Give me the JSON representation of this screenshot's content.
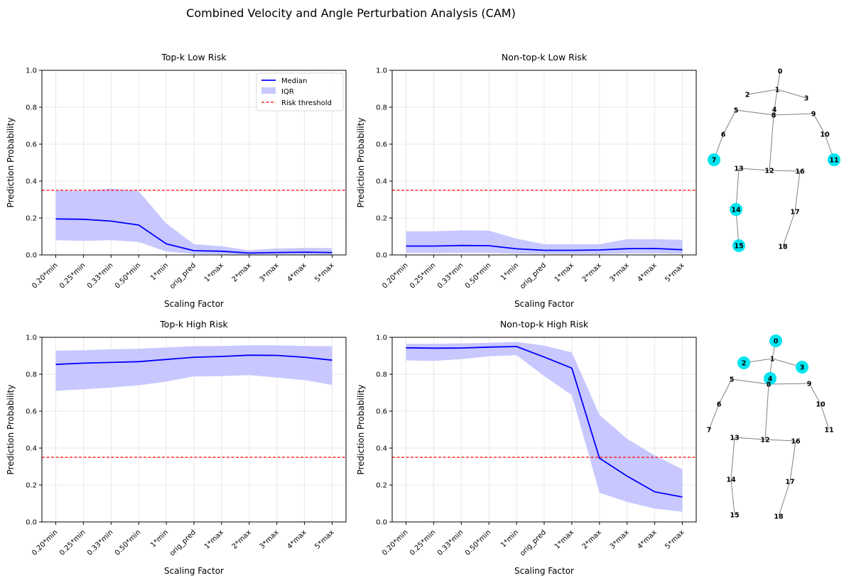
{
  "figure_title": "Combined Velocity and Angle Perturbation Analysis (CAM)",
  "colors": {
    "median": "#0000ff",
    "iqr": "#c8c8ff",
    "threshold": "#ff0000",
    "grid": "#e3e3e3",
    "joint_highlight": "#00e5f0",
    "bone": "#808080"
  },
  "legend": {
    "median": "Median",
    "iqr": "IQR",
    "threshold": "Risk threshold"
  },
  "chart_data": [
    {
      "type": "line",
      "title": "Top-k Low Risk",
      "xlabel": "Scaling Factor",
      "ylabel": "Prediction Probability",
      "ylim": [
        0,
        1
      ],
      "yticks": [
        "0.0",
        "0.2",
        "0.4",
        "0.6",
        "0.8",
        "1.0"
      ],
      "categories": [
        "0.20*min",
        "0.25*min",
        "0.33*min",
        "0.50*min",
        "1*min",
        "orig_pred",
        "1*max",
        "2*max",
        "3*max",
        "4*max",
        "5*max"
      ],
      "median": [
        0.195,
        0.193,
        0.183,
        0.162,
        0.06,
        0.023,
        0.02,
        0.01,
        0.013,
        0.015,
        0.013
      ],
      "iqr_low": [
        0.08,
        0.076,
        0.08,
        0.07,
        0.018,
        0.005,
        0.004,
        0.002,
        0.003,
        0.003,
        0.002
      ],
      "iqr_high": [
        0.35,
        0.345,
        0.36,
        0.345,
        0.17,
        0.058,
        0.047,
        0.025,
        0.035,
        0.038,
        0.037
      ],
      "threshold": 0.35,
      "legend": true,
      "grid": true
    },
    {
      "type": "line",
      "title": "Non-top-k Low Risk",
      "xlabel": "Scaling Factor",
      "ylabel": "Prediction Probability",
      "ylim": [
        0,
        1
      ],
      "yticks": [
        "0.0",
        "0.2",
        "0.4",
        "0.6",
        "0.8",
        "1.0"
      ],
      "categories": [
        "0.20*min",
        "0.25*min",
        "0.33*min",
        "0.50*min",
        "1*min",
        "orig_pred",
        "1*max",
        "2*max",
        "3*max",
        "4*max",
        "5*max"
      ],
      "median": [
        0.048,
        0.048,
        0.051,
        0.05,
        0.033,
        0.025,
        0.025,
        0.027,
        0.034,
        0.035,
        0.028
      ],
      "iqr_low": [
        0.01,
        0.01,
        0.011,
        0.011,
        0.007,
        0.005,
        0.005,
        0.005,
        0.008,
        0.008,
        0.006
      ],
      "iqr_high": [
        0.128,
        0.128,
        0.133,
        0.132,
        0.088,
        0.058,
        0.058,
        0.058,
        0.085,
        0.085,
        0.082
      ],
      "threshold": 0.35,
      "legend": false,
      "grid": true
    },
    {
      "type": "line",
      "title": "Top-k High Risk",
      "xlabel": "Scaling Factor",
      "ylabel": "Prediction Probability",
      "ylim": [
        0,
        1
      ],
      "yticks": [
        "0.0",
        "0.2",
        "0.4",
        "0.6",
        "0.8",
        "1.0"
      ],
      "categories": [
        "0.20*min",
        "0.25*min",
        "0.33*min",
        "0.50*min",
        "1*min",
        "orig_pred",
        "1*max",
        "2*max",
        "3*max",
        "4*max",
        "5*max"
      ],
      "median": [
        0.853,
        0.86,
        0.864,
        0.868,
        0.88,
        0.892,
        0.896,
        0.903,
        0.902,
        0.892,
        0.876
      ],
      "iqr_low": [
        0.71,
        0.718,
        0.728,
        0.74,
        0.76,
        0.788,
        0.79,
        0.795,
        0.782,
        0.768,
        0.742
      ],
      "iqr_high": [
        0.928,
        0.93,
        0.935,
        0.938,
        0.945,
        0.952,
        0.953,
        0.957,
        0.956,
        0.953,
        0.952
      ],
      "threshold": 0.35,
      "legend": false,
      "grid": true
    },
    {
      "type": "line",
      "title": "Non-top-k High Risk",
      "xlabel": "Scaling Factor",
      "ylabel": "Prediction Probability",
      "ylim": [
        0,
        1
      ],
      "yticks": [
        "0.0",
        "0.2",
        "0.4",
        "0.6",
        "0.8",
        "1.0"
      ],
      "categories": [
        "0.20*min",
        "0.25*min",
        "0.33*min",
        "0.50*min",
        "1*min",
        "orig_pred",
        "1*max",
        "2*max",
        "3*max",
        "4*max",
        "5*max"
      ],
      "median": [
        0.943,
        0.941,
        0.942,
        0.947,
        0.95,
        0.893,
        0.833,
        0.345,
        0.248,
        0.163,
        0.135
      ],
      "iqr_low": [
        0.875,
        0.872,
        0.882,
        0.897,
        0.903,
        0.79,
        0.687,
        0.158,
        0.108,
        0.072,
        0.055
      ],
      "iqr_high": [
        0.965,
        0.965,
        0.967,
        0.97,
        0.975,
        0.955,
        0.918,
        0.58,
        0.45,
        0.36,
        0.285
      ],
      "threshold": 0.35,
      "legend": false,
      "grid": true
    }
  ],
  "skeletons": [
    {
      "joint_labels": [
        "0",
        "1",
        "2",
        "3",
        "4",
        "5",
        "6",
        "7",
        "8",
        "9",
        "10",
        "11",
        "12",
        "13",
        "14",
        "15",
        "16",
        "17",
        "18"
      ],
      "highlighted": [
        7,
        11,
        14,
        15
      ]
    },
    {
      "joint_labels": [
        "0",
        "1",
        "2",
        "3",
        "4",
        "5",
        "6",
        "7",
        "8",
        "9",
        "10",
        "11",
        "12",
        "13",
        "14",
        "15",
        "16",
        "17",
        "18"
      ],
      "highlighted": [
        0,
        2,
        3,
        4
      ]
    }
  ]
}
